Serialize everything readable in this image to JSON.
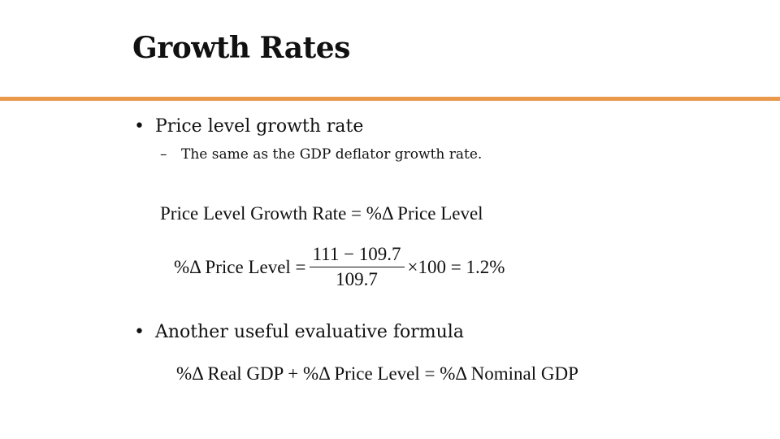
{
  "slide": {
    "title": "Growth Rates",
    "accent_color": "#e8994a",
    "bullets": [
      {
        "marker": "•",
        "text": "Price level growth rate",
        "sub": {
          "marker": "–",
          "text": "The same as the GDP deflator growth rate."
        }
      },
      {
        "marker": "•",
        "text": "Another useful evaluative formula"
      }
    ],
    "equations": {
      "price_level_growth": "Price Level Growth Rate = %Δ Price Level",
      "calc": {
        "lhs": "%Δ Price Level =",
        "numerator": "111 − 109.7",
        "denominator": "109.7",
        "rhs": "×100 = 1.2%"
      },
      "identity": "%Δ Real GDP + %Δ Price Level = %Δ Nominal GDP"
    }
  }
}
